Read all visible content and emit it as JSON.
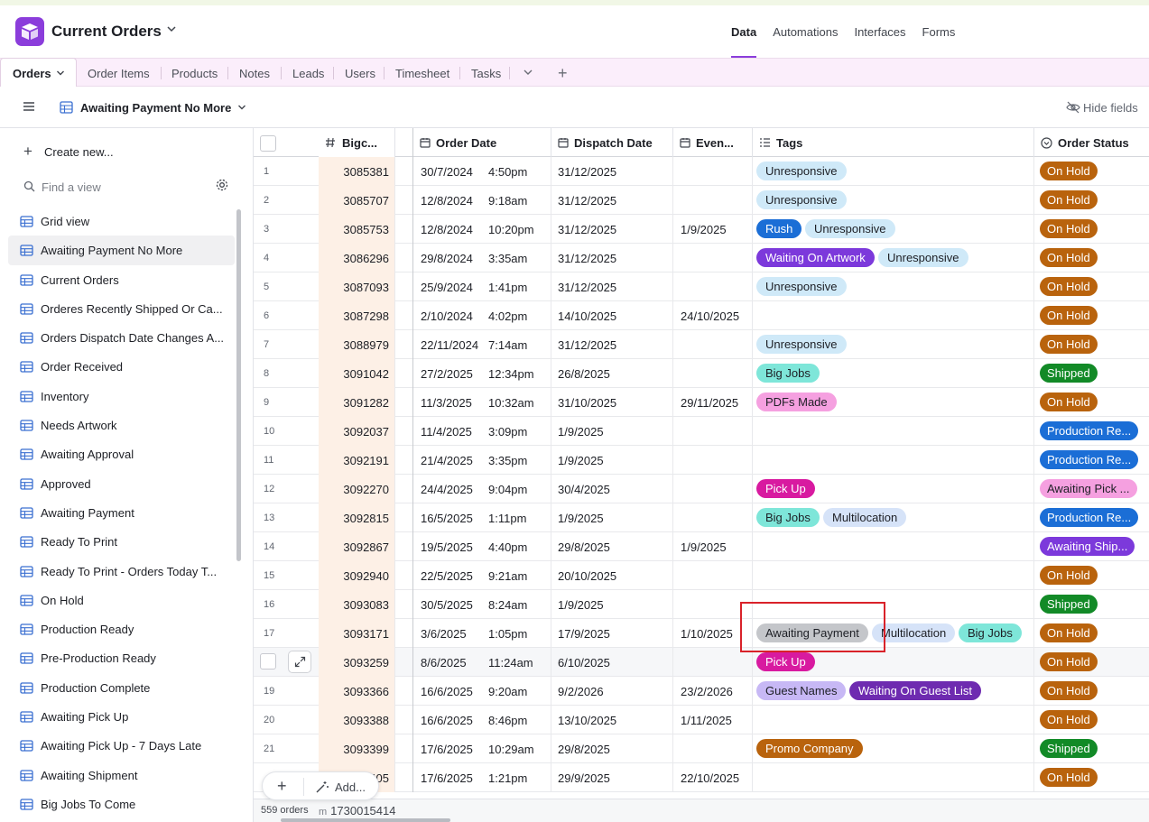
{
  "header": {
    "base_name": "Current Orders",
    "nav": [
      "Data",
      "Automations",
      "Interfaces",
      "Forms"
    ],
    "active_nav": "Data"
  },
  "tables": {
    "active": "Orders",
    "others": [
      "Order Items",
      "Products",
      "Notes",
      "Leads",
      "Users",
      "Timesheet",
      "Tasks"
    ]
  },
  "viewbar": {
    "current_view": "Awaiting Payment No More",
    "hide_fields": "Hide fields"
  },
  "sidebar": {
    "create_new": "Create new...",
    "find_placeholder": "Find a view",
    "views": [
      "Grid view",
      "Awaiting Payment No More",
      "Current Orders",
      "Orderes Recently Shipped Or Ca...",
      "Orders Dispatch Date Changes A...",
      "Order Received",
      "Inventory",
      "Needs Artwork",
      "Awaiting Approval",
      "Approved",
      "Awaiting Payment",
      "Ready To Print",
      "Ready To Print - Orders Today T...",
      "On Hold",
      "Production Ready",
      "Pre-Production Ready",
      "Production Complete",
      "Awaiting Pick Up",
      "Awaiting Pick Up - 7 Days Late",
      "Awaiting Shipment",
      "Big Jobs To Come"
    ],
    "active_view_index": 1
  },
  "grid": {
    "columns": {
      "big": "Bigc...",
      "order_date": "Order Date",
      "dispatch_date": "Dispatch Date",
      "event": "Even...",
      "tags": "Tags",
      "status": "Order Status"
    },
    "tag_colors": {
      "Unresponsive": {
        "bg": "#cfe9f8",
        "fg": "#1d1f25"
      },
      "Rush": {
        "bg": "#1b6ed6",
        "fg": "#ffffff"
      },
      "Waiting On Artwork": {
        "bg": "#7c39db",
        "fg": "#ffffff"
      },
      "Big Jobs": {
        "bg": "#7ee6d9",
        "fg": "#1d1f25"
      },
      "PDFs Made": {
        "bg": "#f5a0e0",
        "fg": "#1d1f25"
      },
      "Pick Up": {
        "bg": "#d81aa0",
        "fg": "#ffffff"
      },
      "Multilocation": {
        "bg": "#d6e3f8",
        "fg": "#1d1f25"
      },
      "Awaiting Payment": {
        "bg": "#c4c6ca",
        "fg": "#1d1f25"
      },
      "Guest Names": {
        "bg": "#c7b8f5",
        "fg": "#1d1f25"
      },
      "Waiting On Guest List": {
        "bg": "#6e2bb0",
        "fg": "#ffffff"
      },
      "Promo Company": {
        "bg": "#b9630d",
        "fg": "#ffffff"
      }
    },
    "status_colors": {
      "On Hold": "#b9630d",
      "Shipped": "#128a27",
      "Production Re...": "#1b6ed6",
      "Awaiting Pick ...": "#f5a0e0",
      "Awaiting Ship...": "#7c39db"
    },
    "rows": [
      {
        "n": "1",
        "big": "3085381",
        "date": "30/7/2024",
        "time": "4:50pm",
        "dispatch": "31/12/2025",
        "event": "",
        "tags": [
          "Unresponsive"
        ],
        "status": "On Hold"
      },
      {
        "n": "2",
        "big": "3085707",
        "date": "12/8/2024",
        "time": "9:18am",
        "dispatch": "31/12/2025",
        "event": "",
        "tags": [
          "Unresponsive"
        ],
        "status": "On Hold"
      },
      {
        "n": "3",
        "big": "3085753",
        "date": "12/8/2024",
        "time": "10:20pm",
        "dispatch": "31/12/2025",
        "event": "1/9/2025",
        "tags": [
          "Rush",
          "Unresponsive"
        ],
        "status": "On Hold"
      },
      {
        "n": "4",
        "big": "3086296",
        "date": "29/8/2024",
        "time": "3:35am",
        "dispatch": "31/12/2025",
        "event": "",
        "tags": [
          "Waiting On Artwork",
          "Unresponsive"
        ],
        "status": "On Hold"
      },
      {
        "n": "5",
        "big": "3087093",
        "date": "25/9/2024",
        "time": "1:41pm",
        "dispatch": "31/12/2025",
        "event": "",
        "tags": [
          "Unresponsive"
        ],
        "status": "On Hold"
      },
      {
        "n": "6",
        "big": "3087298",
        "date": "2/10/2024",
        "time": "4:02pm",
        "dispatch": "14/10/2025",
        "event": "24/10/2025",
        "tags": [],
        "status": "On Hold"
      },
      {
        "n": "7",
        "big": "3088979",
        "date": "22/11/2024",
        "time": "7:14am",
        "dispatch": "31/12/2025",
        "event": "",
        "tags": [
          "Unresponsive"
        ],
        "status": "On Hold"
      },
      {
        "n": "8",
        "big": "3091042",
        "date": "27/2/2025",
        "time": "12:34pm",
        "dispatch": "26/8/2025",
        "event": "",
        "tags": [
          "Big Jobs"
        ],
        "status": "Shipped"
      },
      {
        "n": "9",
        "big": "3091282",
        "date": "11/3/2025",
        "time": "10:32am",
        "dispatch": "31/10/2025",
        "event": "29/11/2025",
        "tags": [
          "PDFs Made"
        ],
        "status": "On Hold"
      },
      {
        "n": "10",
        "big": "3092037",
        "date": "11/4/2025",
        "time": "3:09pm",
        "dispatch": "1/9/2025",
        "event": "",
        "tags": [],
        "status": "Production Re..."
      },
      {
        "n": "11",
        "big": "3092191",
        "date": "21/4/2025",
        "time": "3:35pm",
        "dispatch": "1/9/2025",
        "event": "",
        "tags": [],
        "status": "Production Re..."
      },
      {
        "n": "12",
        "big": "3092270",
        "date": "24/4/2025",
        "time": "9:04pm",
        "dispatch": "30/4/2025",
        "event": "",
        "tags": [
          "Pick Up"
        ],
        "status": "Awaiting Pick ..."
      },
      {
        "n": "13",
        "big": "3092815",
        "date": "16/5/2025",
        "time": "1:11pm",
        "dispatch": "1/9/2025",
        "event": "",
        "tags": [
          "Big Jobs",
          "Multilocation"
        ],
        "status": "Production Re..."
      },
      {
        "n": "14",
        "big": "3092867",
        "date": "19/5/2025",
        "time": "4:40pm",
        "dispatch": "29/8/2025",
        "event": "1/9/2025",
        "tags": [],
        "status": "Awaiting Ship..."
      },
      {
        "n": "15",
        "big": "3092940",
        "date": "22/5/2025",
        "time": "9:21am",
        "dispatch": "20/10/2025",
        "event": "",
        "tags": [],
        "status": "On Hold"
      },
      {
        "n": "16",
        "big": "3093083",
        "date": "30/5/2025",
        "time": "8:24am",
        "dispatch": "1/9/2025",
        "event": "",
        "tags": [],
        "status": "Shipped"
      },
      {
        "n": "17",
        "big": "3093171",
        "date": "3/6/2025",
        "time": "1:05pm",
        "dispatch": "17/9/2025",
        "event": "1/10/2025",
        "tags": [
          "Awaiting Payment",
          "Multilocation",
          "Big Jobs"
        ],
        "status": "On Hold"
      },
      {
        "n": "",
        "big": "3093259",
        "date": "8/6/2025",
        "time": "11:24am",
        "dispatch": "6/10/2025",
        "event": "",
        "tags": [
          "Pick Up"
        ],
        "status": "On Hold",
        "hover": true
      },
      {
        "n": "19",
        "big": "3093366",
        "date": "16/6/2025",
        "time": "9:20am",
        "dispatch": "9/2/2026",
        "event": "23/2/2026",
        "tags": [
          "Guest Names",
          "Waiting On Guest List"
        ],
        "status": "On Hold"
      },
      {
        "n": "20",
        "big": "3093388",
        "date": "16/6/2025",
        "time": "8:46pm",
        "dispatch": "13/10/2025",
        "event": "1/11/2025",
        "tags": [],
        "status": "On Hold"
      },
      {
        "n": "21",
        "big": "3093399",
        "date": "17/6/2025",
        "time": "10:29am",
        "dispatch": "29/8/2025",
        "event": "",
        "tags": [
          "Promo Company"
        ],
        "status": "Shipped"
      },
      {
        "n": "",
        "big": "405",
        "date": "17/6/2025",
        "time": "1:21pm",
        "dispatch": "29/9/2025",
        "event": "22/10/2025",
        "tags": [],
        "status": "On Hold"
      }
    ]
  },
  "footer": {
    "count": "559 orders",
    "sum_prefix": "m",
    "sum": "1730015414",
    "add_label": "Add..."
  }
}
